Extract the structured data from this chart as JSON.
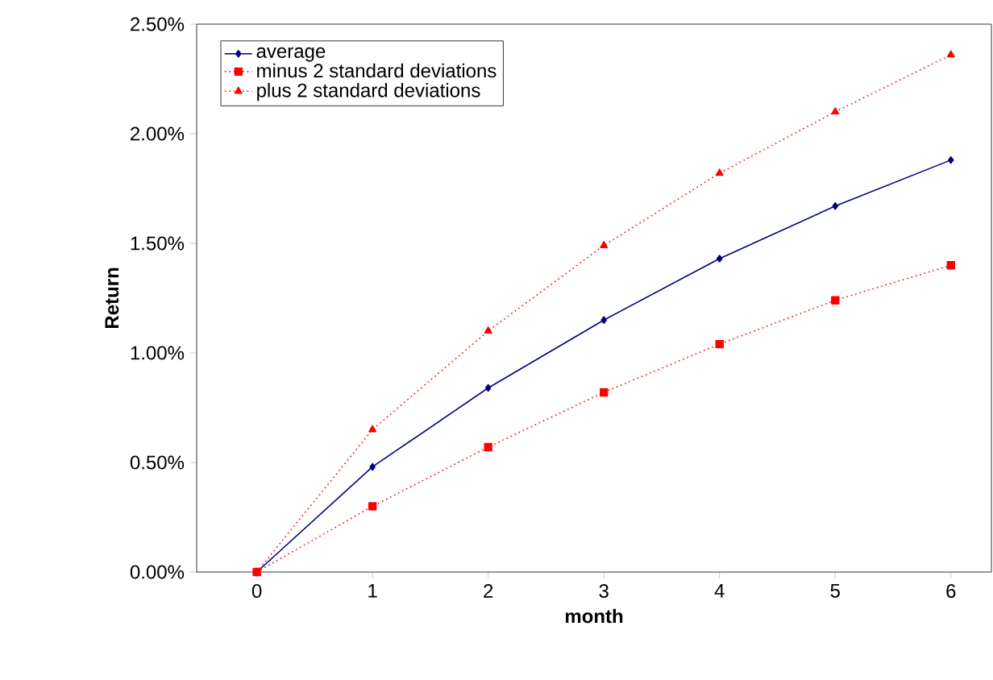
{
  "chart_data": {
    "type": "line",
    "xlabel": "month",
    "ylabel": "Return",
    "x": [
      0,
      1,
      2,
      3,
      4,
      5,
      6
    ],
    "series": [
      {
        "name": "average",
        "color": "#000080",
        "values": [
          0,
          0.48,
          0.84,
          1.15,
          1.43,
          1.67,
          1.88
        ],
        "marker": "diamond",
        "line_style": "solid"
      },
      {
        "name": "minus 2 standard deviations",
        "color": "#ff0000",
        "values": [
          0,
          0.3,
          0.57,
          0.82,
          1.04,
          1.24,
          1.4
        ],
        "marker": "square",
        "line_style": "dotted"
      },
      {
        "name": "plus 2 standard deviations",
        "color": "#ff0000",
        "values": [
          0,
          0.65,
          1.1,
          1.49,
          1.82,
          2.1,
          2.36
        ],
        "marker": "triangle",
        "line_style": "dotted"
      }
    ],
    "xlim": [
      -0.52,
      6.35
    ],
    "ylim": [
      0,
      2.5
    ],
    "xticks": [
      0,
      1,
      2,
      3,
      4,
      5,
      6
    ],
    "yticks": [
      {
        "value": 0,
        "label": "0.00%"
      },
      {
        "value": 0.5,
        "label": "0.50%"
      },
      {
        "value": 1,
        "label": "1.00%"
      },
      {
        "value": 1.5,
        "label": "1.50%"
      },
      {
        "value": 2,
        "label": "2.00%"
      },
      {
        "value": 2.5,
        "label": "2.50%"
      }
    ],
    "grid": false,
    "legend": "top left"
  }
}
